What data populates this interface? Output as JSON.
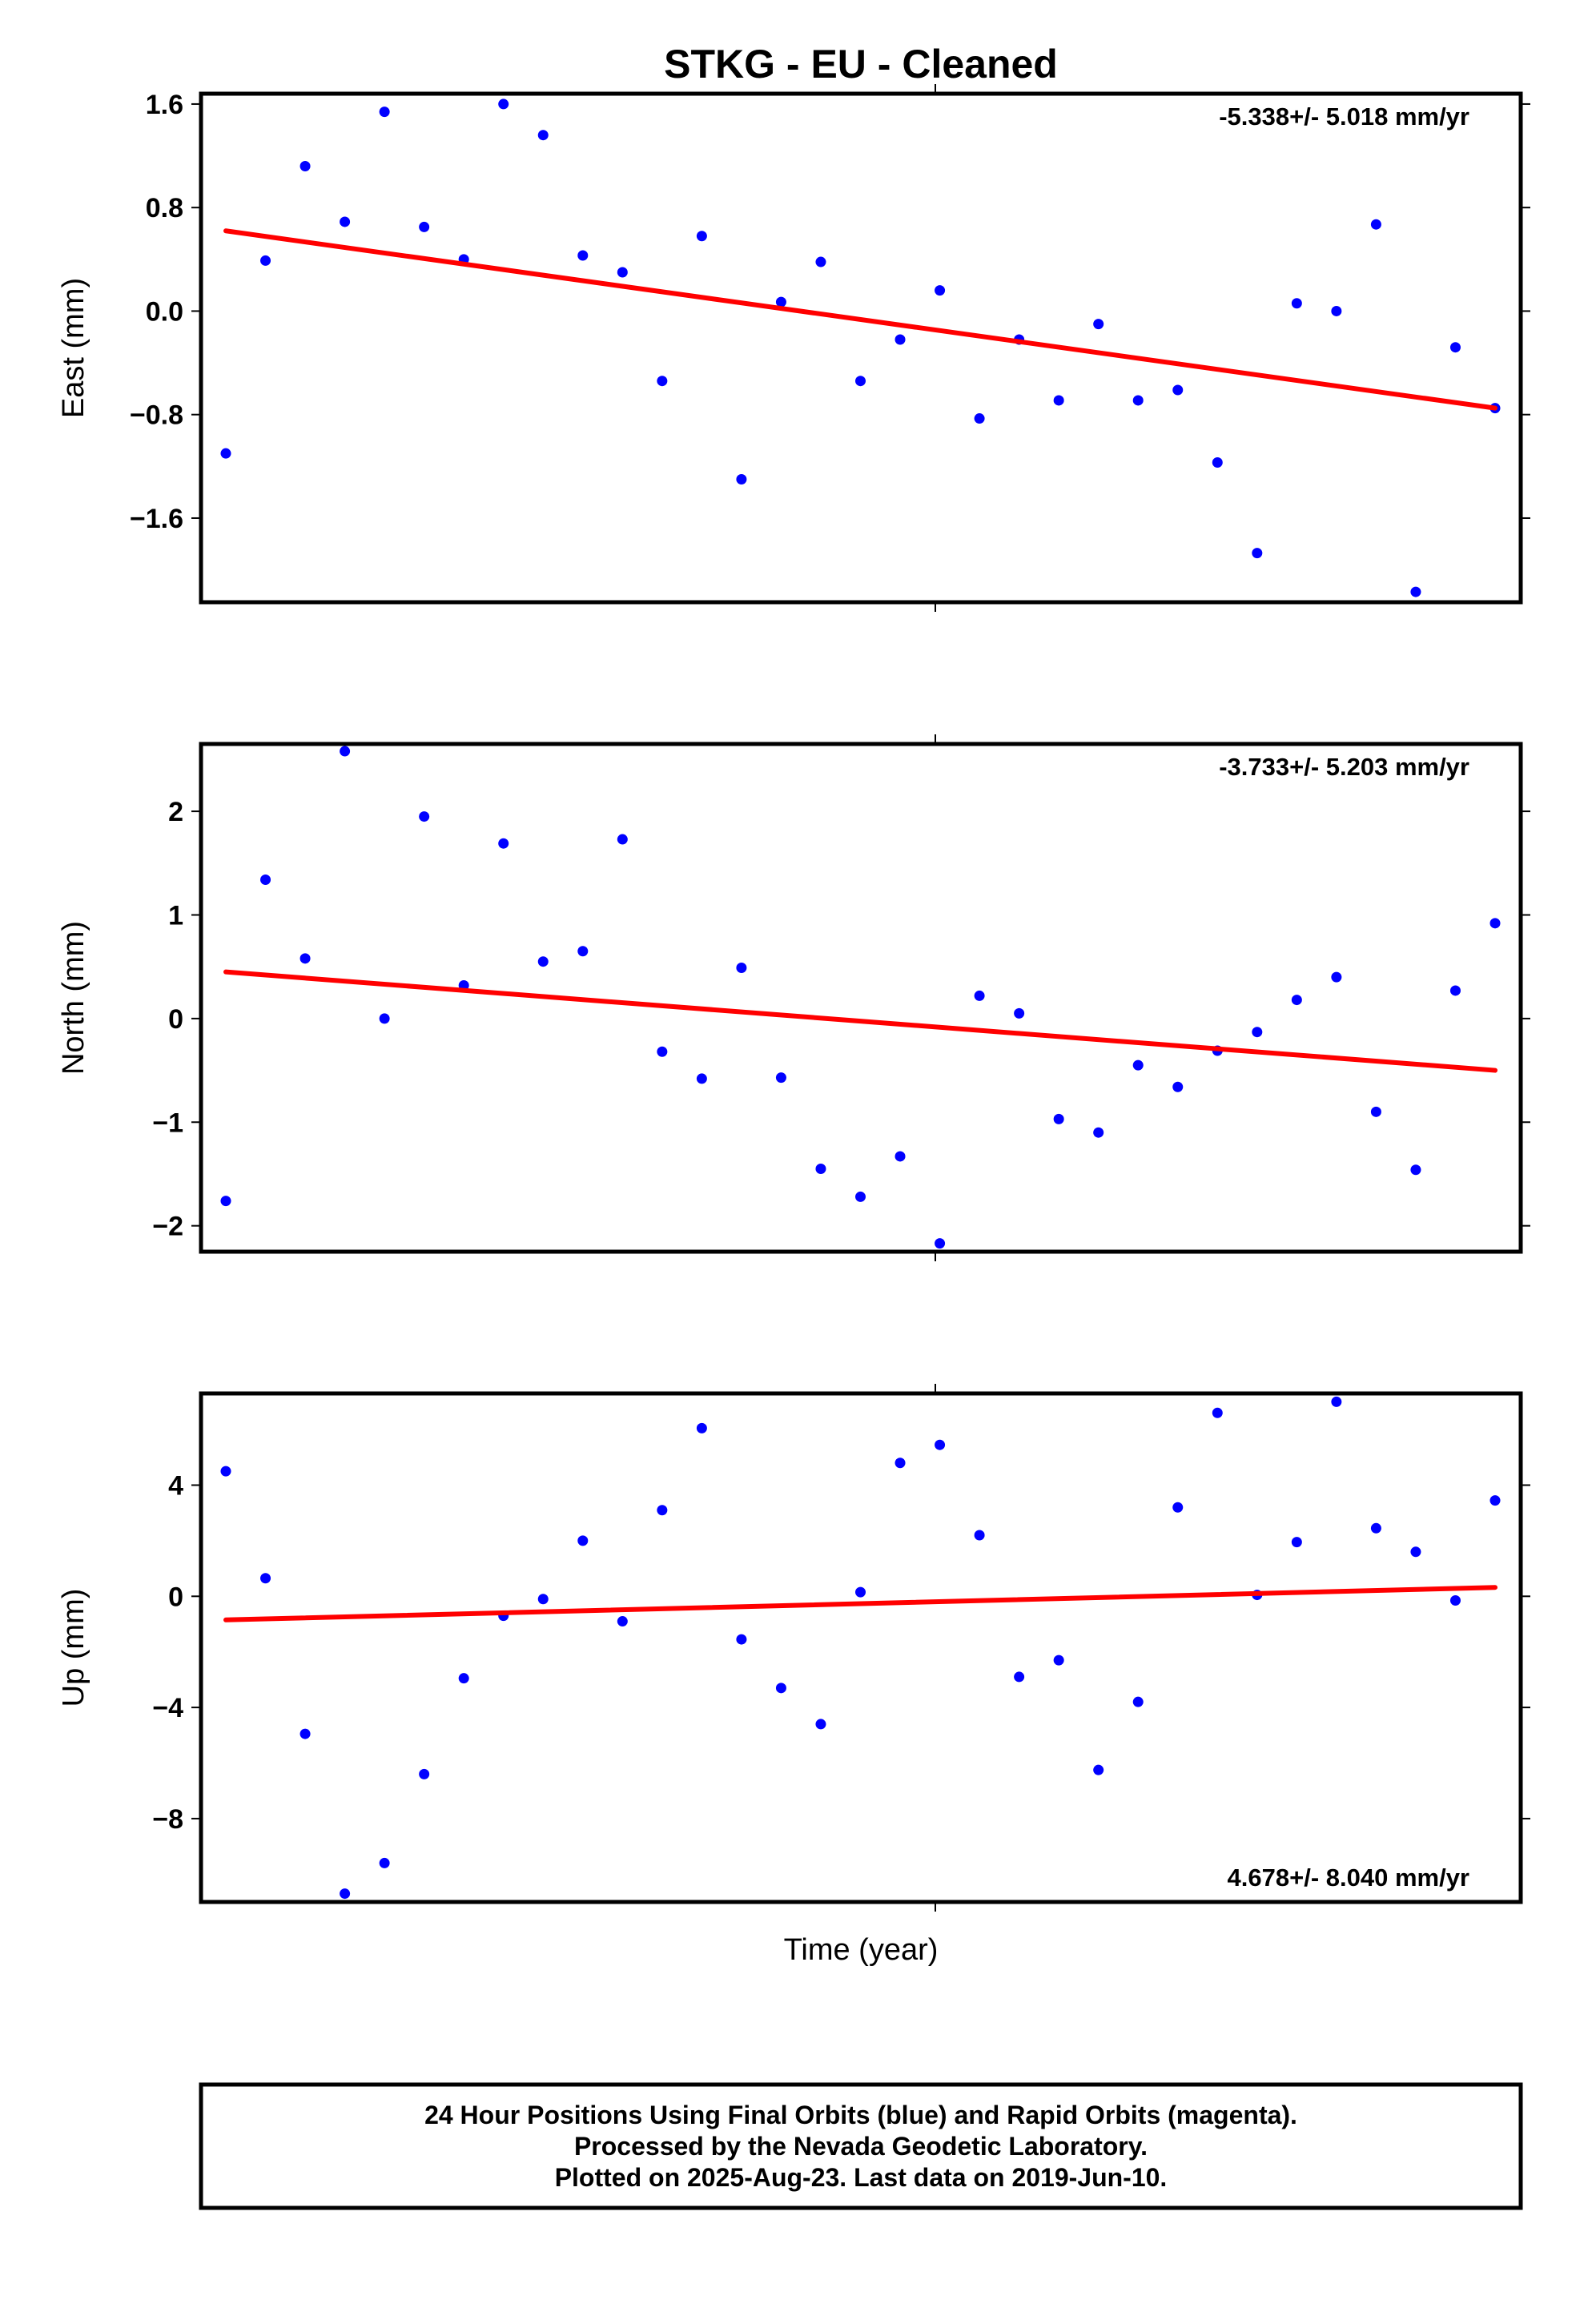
{
  "chart_data": {
    "title": "STKG  - EU - Cleaned",
    "xlabel": "Time (year)",
    "colors": {
      "final_orbits": "#0000ff",
      "trend": "#ff0000",
      "frame": "#000000"
    },
    "panels": [
      {
        "type": "scatter",
        "ylabel": "East (mm)",
        "ylim": [
          -2.25,
          1.68
        ],
        "yticks": [
          1.6,
          0.8,
          0.0,
          -0.8,
          -1.6
        ],
        "ytick_labels": [
          "1.6",
          "0.8",
          "0.0",
          "−0.8",
          "−1.6"
        ],
        "rate_label": "-5.338+/- 5.018 mm/yr",
        "rate_position": "top-right",
        "trend": [
          0.62,
          -0.75
        ],
        "values": [
          -1.1,
          0.39,
          1.12,
          0.69,
          1.54,
          0.65,
          0.4,
          1.6,
          1.36,
          0.43,
          0.3,
          -0.54,
          0.58,
          -1.3,
          0.07,
          0.38,
          -0.54,
          -0.22,
          0.16,
          -0.83,
          -0.22,
          -0.69,
          -0.1,
          -0.69,
          -0.61,
          -1.17,
          -1.87,
          0.06,
          0.0,
          0.67,
          -2.17,
          -0.28,
          -0.75
        ]
      },
      {
        "type": "scatter",
        "ylabel": "North (mm)",
        "ylim": [
          -2.25,
          2.65
        ],
        "yticks": [
          2,
          1,
          0,
          -1,
          -2
        ],
        "ytick_labels": [
          "2",
          "1",
          "0",
          "−1",
          "−2"
        ],
        "rate_label": "-3.733+/- 5.203 mm/yr",
        "rate_position": "top-right",
        "trend": [
          0.45,
          -0.5
        ],
        "values": [
          -1.76,
          1.34,
          0.58,
          2.58,
          0.0,
          1.95,
          0.32,
          1.69,
          0.55,
          0.65,
          1.73,
          -0.32,
          -0.58,
          0.49,
          -0.57,
          -1.45,
          -1.72,
          -1.33,
          -2.17,
          0.22,
          0.05,
          -0.97,
          -1.1,
          -0.45,
          -0.66,
          -0.31,
          -0.13,
          0.18,
          0.4,
          -0.9,
          -1.46,
          0.27,
          0.92
        ]
      },
      {
        "type": "scatter",
        "ylabel": "Up (mm)",
        "ylim": [
          -11.0,
          7.3
        ],
        "yticks": [
          4,
          0,
          -4,
          -8
        ],
        "ytick_labels": [
          "4",
          "0",
          "−4",
          "−8"
        ],
        "rate_label": "4.678+/- 8.040 mm/yr",
        "rate_position": "bottom-right",
        "trend": [
          -0.85,
          0.32
        ],
        "values": [
          4.5,
          0.65,
          -4.95,
          -10.7,
          -9.6,
          -6.4,
          -2.95,
          -0.7,
          -0.1,
          2.0,
          -0.9,
          3.1,
          6.05,
          -1.55,
          -3.3,
          -4.6,
          0.15,
          4.8,
          5.45,
          2.2,
          -2.9,
          -2.3,
          -6.25,
          -3.8,
          3.2,
          6.6,
          0.05,
          1.95,
          7.0,
          2.45,
          1.6,
          -0.15,
          3.45
        ]
      }
    ]
  },
  "footer": {
    "line1": "24 Hour Positions Using Final Orbits (blue) and Rapid Orbits (magenta).",
    "line2": "Processed by the Nevada Geodetic Laboratory.",
    "line3": "Plotted on 2025-Aug-23. Last data on 2019-Jun-10."
  }
}
